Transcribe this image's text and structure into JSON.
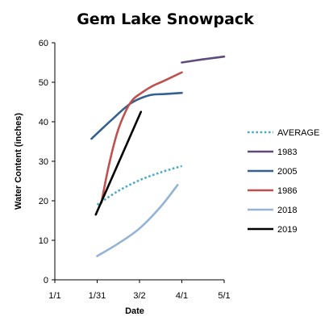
{
  "chart_data": {
    "type": "line",
    "title": "Gem Lake Snowpack",
    "xlabel": "Date",
    "ylabel": "Water Content (inches)",
    "x_ticks": [
      "1/1",
      "1/31",
      "3/2",
      "4/1",
      "5/1"
    ],
    "x_unit": "date",
    "ylim": [
      0,
      60
    ],
    "y_ticks": [
      "0",
      "10",
      "20",
      "30",
      "40",
      "50",
      "60"
    ],
    "grid": false,
    "legend_position": "right",
    "series": [
      {
        "name": "AVERAGE",
        "color": "#4bacc6",
        "dash": "dotted",
        "points": [
          [
            "1/31",
            19
          ],
          [
            "2/15",
            22.5
          ],
          [
            "3/2",
            25.2
          ],
          [
            "3/17",
            27.2
          ],
          [
            "4/1",
            28.8
          ]
        ]
      },
      {
        "name": "1983",
        "color": "#604a7b",
        "dash": "solid",
        "points": [
          [
            "4/1",
            55
          ],
          [
            "4/16",
            55.8
          ],
          [
            "5/1",
            56.5
          ]
        ]
      },
      {
        "name": "2005",
        "color": "#366092",
        "dash": "solid",
        "points": [
          [
            "1/27",
            35.7
          ],
          [
            "2/10",
            40.4
          ],
          [
            "2/24",
            44.7
          ],
          [
            "3/9",
            46.7
          ],
          [
            "3/19",
            47
          ],
          [
            "4/1",
            47.3
          ]
        ]
      },
      {
        "name": "1986",
        "color": "#c0504d",
        "dash": "solid",
        "points": [
          [
            "2/3",
            19.5
          ],
          [
            "2/8",
            28.5
          ],
          [
            "2/14",
            37
          ],
          [
            "2/20",
            42.5
          ],
          [
            "2/25",
            45.5
          ],
          [
            "3/3",
            47.2
          ],
          [
            "3/11",
            49
          ],
          [
            "3/19",
            50.3
          ],
          [
            "4/1",
            52.5
          ]
        ]
      },
      {
        "name": "2018",
        "color": "#95b3d7",
        "dash": "solid",
        "points": [
          [
            "1/31",
            6
          ],
          [
            "2/15",
            9.2
          ],
          [
            "3/2",
            13
          ],
          [
            "3/17",
            18.5
          ],
          [
            "3/29",
            24
          ]
        ]
      },
      {
        "name": "2019",
        "color": "#000000",
        "dash": "solid",
        "points": [
          [
            "1/30",
            16.5
          ],
          [
            "3/3",
            42.5
          ]
        ]
      }
    ]
  }
}
